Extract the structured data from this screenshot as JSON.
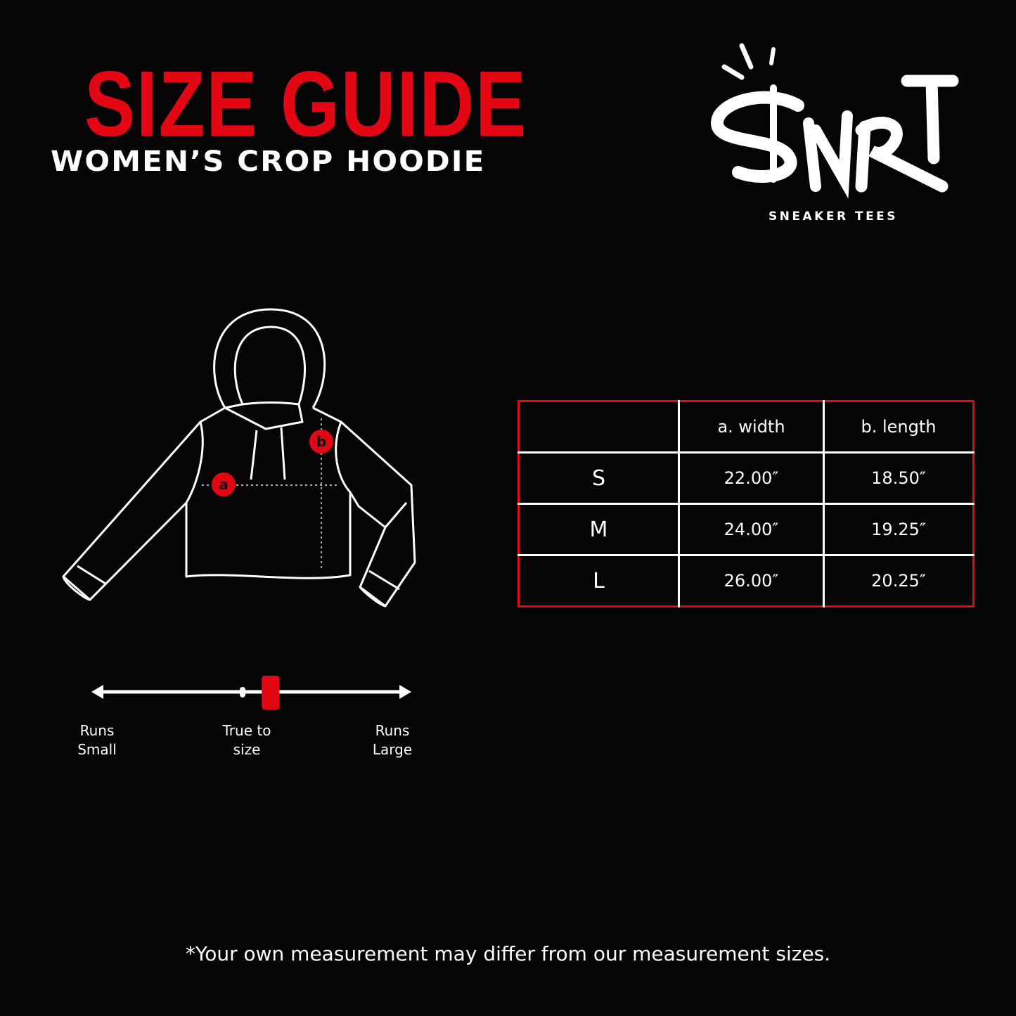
{
  "colors": {
    "accent": "#e30613",
    "background": "#060405",
    "text": "#ffffff"
  },
  "header": {
    "title": "SIZE GUIDE",
    "subtitle": "WOMEN’S CROP HOODIE"
  },
  "logo": {
    "mark": "$NRT",
    "tagline": "SNEAKER TEES"
  },
  "diagram": {
    "marker_a": "a",
    "marker_b": "b"
  },
  "table": {
    "headers": [
      "",
      "a. width",
      "b. length"
    ],
    "rows": [
      {
        "size": "S",
        "width": "22.00″",
        "length": "18.50″"
      },
      {
        "size": "M",
        "width": "24.00″",
        "length": "19.25″"
      },
      {
        "size": "L",
        "width": "26.00″",
        "length": "20.25″"
      }
    ]
  },
  "fit_scale": {
    "labels": {
      "small": "Runs Small",
      "true": "True to size",
      "large": "Runs Large"
    },
    "value": 0.56
  },
  "footnote": "*Your own measurement may differ from our measurement sizes."
}
